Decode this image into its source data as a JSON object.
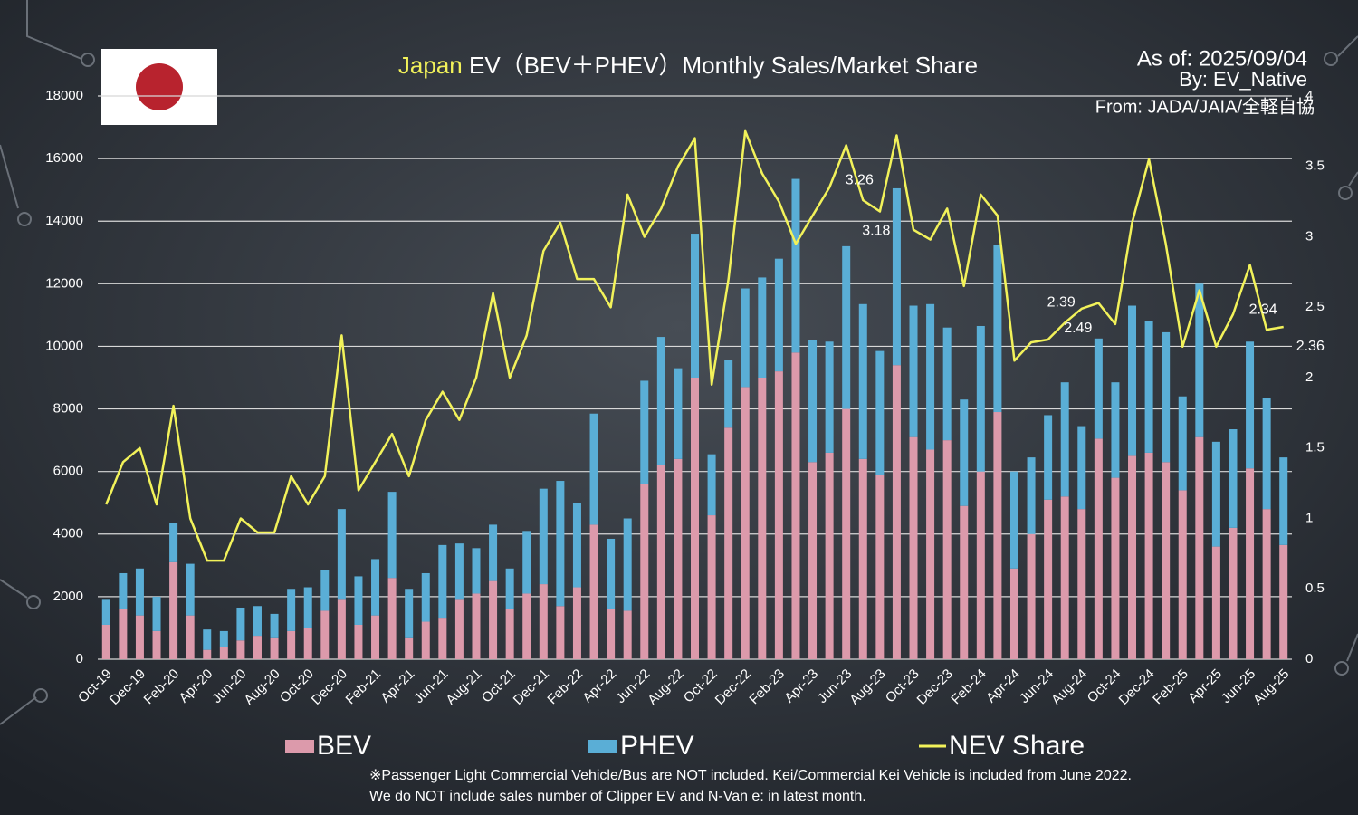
{
  "chart_data": {
    "type": "bar-line",
    "title": [
      "Japan",
      " EV（BEV＋PHEV）Monthly Sales/Market Share"
    ],
    "info": [
      "As of: 2025/09/04",
      "By: EV_Native",
      "From: JADA/JAIA/全軽自協"
    ],
    "footnotes": [
      "※Passenger Light Commercial Vehicle/Bus are NOT included. Kei/Commercial Kei Vehicle is included from June 2022.",
      "We do NOT include sales number of Clipper EV and N-Van e: in latest month."
    ],
    "categories": [
      "Oct-19",
      null,
      "Dec-19",
      null,
      "Feb-20",
      null,
      "Apr-20",
      null,
      "Jun-20",
      null,
      "Aug-20",
      null,
      "Oct-20",
      null,
      "Dec-20",
      null,
      "Feb-21",
      null,
      "Apr-21",
      null,
      "Jun-21",
      null,
      "Aug-21",
      null,
      "Oct-21",
      null,
      "Dec-21",
      null,
      "Feb-22",
      null,
      "Apr-22",
      null,
      "Jun-22",
      null,
      "Aug-22",
      null,
      "Oct-22",
      null,
      "Dec-22",
      null,
      "Feb-23",
      null,
      "Apr-23",
      null,
      "Jun-23",
      null,
      "Aug-23",
      null,
      "Oct-23",
      null,
      "Dec-23",
      null,
      "Feb-24",
      null,
      "Apr-24",
      null,
      "Jun-24",
      null,
      "Aug-24",
      null,
      "Oct-24",
      null,
      "Dec-24",
      null,
      "Feb-25",
      null,
      "Apr-25",
      null,
      "Jun-25",
      null,
      "Aug-25"
    ],
    "series": [
      {
        "name": "BEV",
        "color": "#dc9aab",
        "type": "bar",
        "values": [
          1100,
          1600,
          1400,
          900,
          3100,
          1400,
          300,
          400,
          600,
          750,
          700,
          900,
          1000,
          1550,
          1900,
          1100,
          1400,
          2600,
          700,
          1200,
          1300,
          1900,
          2100,
          2500,
          1600,
          2100,
          2400,
          1700,
          2300,
          4300,
          1600,
          1550,
          5600,
          6200,
          6400,
          9000,
          4600,
          7400,
          8700,
          9000,
          9200,
          9800,
          6300,
          6600,
          8000,
          6400,
          5900,
          9400,
          7100,
          6700,
          7000,
          4900,
          6000,
          7900,
          2900,
          4000,
          5100,
          5200,
          4800,
          7050,
          5800,
          6500,
          6600,
          6300,
          5400,
          7100,
          3600,
          4200,
          6100,
          4800,
          3650
        ]
      },
      {
        "name": "PHEV",
        "color": "#5aaed6",
        "type": "bar",
        "values": [
          800,
          1150,
          1500,
          1100,
          1250,
          1650,
          650,
          500,
          1050,
          950,
          750,
          1350,
          1300,
          1300,
          2900,
          1550,
          1800,
          2750,
          1550,
          1550,
          2350,
          1800,
          1450,
          1800,
          1300,
          2000,
          3050,
          4000,
          2700,
          3550,
          2250,
          2950,
          3300,
          4100,
          2900,
          4600,
          1950,
          2150,
          3150,
          3200,
          3600,
          5550,
          3900,
          3550,
          5200,
          4950,
          3950,
          5650,
          4200,
          4650,
          3600,
          3400,
          4650,
          5350,
          3100,
          2450,
          2700,
          3650,
          2650,
          3200,
          3050,
          4800,
          4200,
          4150,
          3000,
          4900,
          3350,
          3150,
          4050,
          3550,
          2800
        ]
      },
      {
        "name": "NEV Share",
        "color": "#f2f25a",
        "type": "line",
        "axis": "y2",
        "values": [
          1.1,
          1.4,
          1.5,
          1.1,
          1.8,
          1.0,
          0.7,
          0.7,
          1.0,
          0.9,
          0.9,
          1.3,
          1.1,
          1.3,
          2.3,
          1.2,
          1.4,
          1.6,
          1.3,
          1.7,
          1.9,
          1.7,
          2.0,
          2.6,
          2.0,
          2.3,
          2.9,
          3.1,
          2.7,
          2.7,
          2.5,
          3.3,
          3.0,
          3.2,
          3.5,
          3.7,
          1.95,
          2.7,
          3.75,
          3.45,
          3.25,
          2.95,
          3.15,
          3.35,
          3.65,
          3.26,
          3.18,
          3.72,
          3.05,
          2.98,
          3.2,
          2.65,
          3.3,
          3.15,
          2.12,
          2.25,
          2.27,
          2.39,
          2.49,
          2.53,
          2.38,
          3.1,
          3.55,
          2.95,
          2.22,
          2.62,
          2.22,
          2.45,
          2.8,
          2.34,
          2.36
        ],
        "value_labels": [
          null,
          null,
          null,
          null,
          null,
          null,
          null,
          null,
          null,
          null,
          null,
          null,
          null,
          null,
          null,
          null,
          null,
          null,
          null,
          null,
          null,
          null,
          null,
          null,
          null,
          null,
          null,
          null,
          null,
          null,
          null,
          null,
          null,
          null,
          null,
          null,
          null,
          null,
          null,
          null,
          null,
          null,
          null,
          null,
          null,
          "3.26",
          "3.18",
          null,
          null,
          null,
          null,
          null,
          null,
          null,
          null,
          null,
          null,
          "2.39",
          "2.49",
          null,
          null,
          null,
          null,
          null,
          null,
          null,
          null,
          null,
          null,
          "2.34",
          "2.36"
        ]
      }
    ],
    "ylim": [
      0,
      18000
    ],
    "yticks": [
      0,
      2000,
      4000,
      6000,
      8000,
      10000,
      12000,
      14000,
      16000,
      18000
    ],
    "y2lim": [
      0,
      4
    ],
    "y2ticks": [
      0,
      0.5,
      1,
      1.5,
      2,
      2.5,
      3,
      3.5,
      4
    ],
    "grid": true,
    "stacked": true,
    "legend": "bottom"
  }
}
